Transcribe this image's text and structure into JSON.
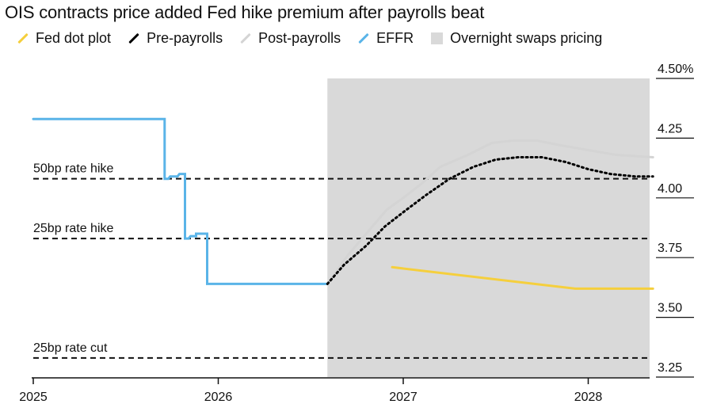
{
  "chart_data": {
    "type": "line",
    "title": "OIS contracts price added Fed hike premium after payrolls beat",
    "colors": {
      "fed_dot_plot": "#f5cf3d",
      "pre_payrolls": "#000000",
      "post_payrolls": "#d4d4d4",
      "effr": "#5ab4e8",
      "swaps_shade": "#d9d9d9"
    },
    "legend": [
      {
        "label": "Fed dot plot",
        "kind": "line",
        "color": "#f5cf3d"
      },
      {
        "label": "Pre-payrolls",
        "kind": "line",
        "color": "#000000"
      },
      {
        "label": "Post-payrolls",
        "kind": "line",
        "color": "#d4d4d4"
      },
      {
        "label": "EFFR",
        "kind": "line",
        "color": "#5ab4e8"
      },
      {
        "label": "Overnight swaps pricing",
        "kind": "box",
        "color": "#d9d9d9"
      }
    ],
    "x_ticks": [
      "2025",
      "2026",
      "2027",
      "2028"
    ],
    "x_tick_values": [
      2025.0,
      2026.0,
      2027.0,
      2028.0
    ],
    "xlim": [
      2025.0,
      2028.35
    ],
    "y_ticks": [
      "4.50%",
      "4.25",
      "4.00",
      "3.75",
      "3.50",
      "3.25"
    ],
    "y_tick_values": [
      4.5,
      4.25,
      4.0,
      3.75,
      3.5,
      3.25
    ],
    "ylim": [
      3.25,
      4.5
    ],
    "shade_range": [
      2026.59,
      2028.35
    ],
    "reference_lines": [
      {
        "label": "50bp rate hike",
        "y": 4.08
      },
      {
        "label": "25bp rate hike",
        "y": 3.83
      },
      {
        "label": "25bp rate cut",
        "y": 3.33
      }
    ],
    "series": [
      {
        "name": "EFFR",
        "key": "effr",
        "step": true,
        "points": [
          [
            2025.0,
            4.33
          ],
          [
            2025.71,
            4.33
          ],
          [
            2025.71,
            4.08
          ],
          [
            2025.73,
            4.08
          ],
          [
            2025.74,
            4.09
          ],
          [
            2025.78,
            4.09
          ],
          [
            2025.79,
            4.1
          ],
          [
            2025.82,
            4.1
          ],
          [
            2025.82,
            3.83
          ],
          [
            2025.84,
            3.83
          ],
          [
            2025.85,
            3.84
          ],
          [
            2025.88,
            3.84
          ],
          [
            2025.88,
            3.85
          ],
          [
            2025.94,
            3.85
          ],
          [
            2025.94,
            3.64
          ],
          [
            2026.59,
            3.64
          ]
        ]
      },
      {
        "name": "Post-payrolls",
        "key": "post_payrolls",
        "points": [
          [
            2026.59,
            3.64
          ],
          [
            2026.7,
            3.76
          ],
          [
            2026.8,
            3.85
          ],
          [
            2026.91,
            3.95
          ],
          [
            2027.0,
            4.0
          ],
          [
            2027.1,
            4.06
          ],
          [
            2027.2,
            4.13
          ],
          [
            2027.35,
            4.18
          ],
          [
            2027.48,
            4.23
          ],
          [
            2027.6,
            4.24
          ],
          [
            2027.72,
            4.24
          ],
          [
            2027.85,
            4.22
          ],
          [
            2028.0,
            4.2
          ],
          [
            2028.15,
            4.18
          ],
          [
            2028.35,
            4.17
          ]
        ]
      },
      {
        "name": "Pre-payrolls",
        "key": "pre_payrolls",
        "dotted": true,
        "points": [
          [
            2026.59,
            3.64
          ],
          [
            2026.68,
            3.72
          ],
          [
            2026.8,
            3.8
          ],
          [
            2026.9,
            3.88
          ],
          [
            2027.0,
            3.94
          ],
          [
            2027.12,
            4.01
          ],
          [
            2027.25,
            4.08
          ],
          [
            2027.38,
            4.13
          ],
          [
            2027.5,
            4.16
          ],
          [
            2027.62,
            4.17
          ],
          [
            2027.75,
            4.17
          ],
          [
            2027.88,
            4.15
          ],
          [
            2028.0,
            4.12
          ],
          [
            2028.12,
            4.1
          ],
          [
            2028.25,
            4.09
          ],
          [
            2028.35,
            4.09
          ]
        ]
      },
      {
        "name": "Fed dot plot",
        "key": "fed_dot_plot",
        "points": [
          [
            2026.94,
            3.71
          ],
          [
            2027.93,
            3.62
          ],
          [
            2028.35,
            3.62
          ]
        ]
      }
    ]
  }
}
